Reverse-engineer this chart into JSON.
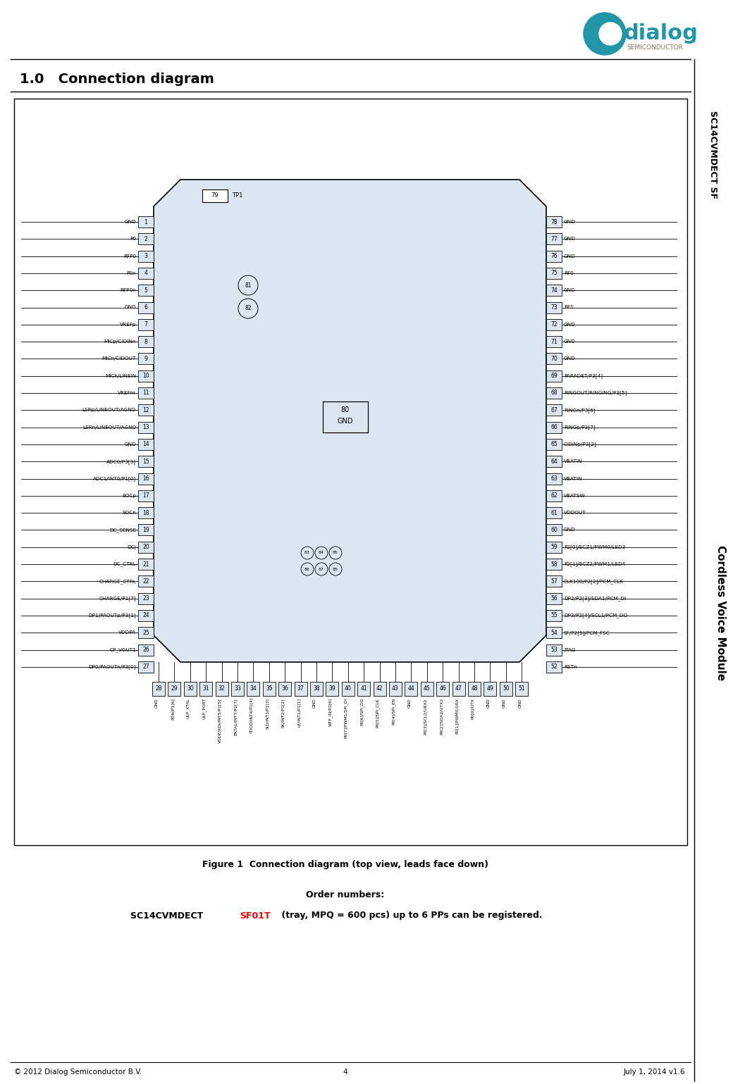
{
  "title": "1.0   Connection diagram",
  "figure_caption": "Figure 1  Connection diagram (top view, leads face down)",
  "order_text1": "Order numbers:",
  "footer_left": "© 2012 Dialog Semiconductor B.V.",
  "footer_center": "4",
  "footer_right": "July 1, 2014 v1.6",
  "right_sidebar1": "SC14CVMDECT SF",
  "right_sidebar2": "Cordless Voice Module",
  "ic_bg": "#dce6f1",
  "ic_border": "#000000",
  "left_pins": [
    {
      "num": 1,
      "name": "GND"
    },
    {
      "num": 2,
      "name": "P0"
    },
    {
      "num": 3,
      "name": "RFP0"
    },
    {
      "num": 4,
      "name": "P0n"
    },
    {
      "num": 5,
      "name": "RFP0n"
    },
    {
      "num": 6,
      "name": "GND"
    },
    {
      "num": 7,
      "name": "VREFp"
    },
    {
      "num": 8,
      "name": "MICp/CIDINn"
    },
    {
      "num": 9,
      "name": "MICn/CIDOUT"
    },
    {
      "num": 10,
      "name": "MICh/LINEIN"
    },
    {
      "num": 11,
      "name": "VREFm"
    },
    {
      "num": 12,
      "name": "LSRp/LINEOUT/AGND"
    },
    {
      "num": 13,
      "name": "LSRn/LINEOUT/AGND"
    },
    {
      "num": 14,
      "name": "GND"
    },
    {
      "num": 15,
      "name": "ADC0/P3[3]"
    },
    {
      "num": 16,
      "name": "ADC1/INT0/P1[0]"
    },
    {
      "num": 17,
      "name": "SOCp"
    },
    {
      "num": 18,
      "name": "SOCn"
    },
    {
      "num": 19,
      "name": "DC_SENSE"
    },
    {
      "num": 20,
      "name": "DCJ"
    },
    {
      "num": 21,
      "name": "DC_CTRL"
    },
    {
      "num": 22,
      "name": "CHARGE_CTRL"
    },
    {
      "num": 23,
      "name": "CHARGE/P1[7]"
    },
    {
      "num": 24,
      "name": "DP1/PAOUTp/P3[1]"
    },
    {
      "num": 25,
      "name": "VDDPA"
    },
    {
      "num": 26,
      "name": "CP_VOUT1"
    },
    {
      "num": 27,
      "name": "DP0/PAOUTn/P3[0]"
    }
  ],
  "right_pins": [
    {
      "num": 78,
      "name": "GND"
    },
    {
      "num": 77,
      "name": "GND"
    },
    {
      "num": 76,
      "name": "GND"
    },
    {
      "num": 75,
      "name": "RF0"
    },
    {
      "num": 74,
      "name": "GND"
    },
    {
      "num": 73,
      "name": "RF1"
    },
    {
      "num": 72,
      "name": "GND"
    },
    {
      "num": 71,
      "name": "GND"
    },
    {
      "num": 70,
      "name": "GND"
    },
    {
      "num": 69,
      "name": "PARADET/P3[4]"
    },
    {
      "num": 68,
      "name": "RINGOUT/RINGING/P3[5]"
    },
    {
      "num": 67,
      "name": "RINGn/P3[6]"
    },
    {
      "num": 66,
      "name": "RINGp/P3[7]"
    },
    {
      "num": 65,
      "name": "CIDINp/P3[2]"
    },
    {
      "num": 64,
      "name": "VBATIN"
    },
    {
      "num": 63,
      "name": "VBATIN"
    },
    {
      "num": 62,
      "name": "VBATSW"
    },
    {
      "num": 61,
      "name": "VDDOUT"
    },
    {
      "num": 60,
      "name": "GND"
    },
    {
      "num": 59,
      "name": "P2[0]/ECZ1/PWM0/LED3"
    },
    {
      "num": 58,
      "name": "P2[1]/ECZ2/PWM1/LED4"
    },
    {
      "num": 57,
      "name": "CLK100/P2[2]/PCM_CLK"
    },
    {
      "num": 56,
      "name": "DP2/P2[3]/SDA1/PCM_DI"
    },
    {
      "num": 55,
      "name": "DP3/P2[4]/SCL1/PCM_DO"
    },
    {
      "num": 54,
      "name": "SF/P2[5]/PCM_FSC"
    },
    {
      "num": 53,
      "name": "JTAG"
    },
    {
      "num": 52,
      "name": "RSTn"
    }
  ],
  "bottom_pins": [
    {
      "num": 28,
      "name": "GND"
    },
    {
      "num": 29,
      "name": "PON/P1[6]"
    },
    {
      "num": 30,
      "name": "ULP_XTAL"
    },
    {
      "num": 31,
      "name": "ULP_PORT"
    },
    {
      "num": 32,
      "name": "VDDE/RDI/INT5/P1[5]"
    },
    {
      "num": 33,
      "name": "BXTAL/INT7/P2[7]"
    },
    {
      "num": 34,
      "name": "TDOD/INT4/P1[4]"
    },
    {
      "num": 35,
      "name": "SIO/INT3/P1[3]"
    },
    {
      "num": 36,
      "name": "SK/INT2/P1[2]"
    },
    {
      "num": 37,
      "name": "LE/INT1/P1[1]"
    },
    {
      "num": 38,
      "name": "GND"
    },
    {
      "num": 39,
      "name": "WTF_IN/P2[6]"
    },
    {
      "num": 40,
      "name": "P0[7]/PWM1/SPI_DI"
    },
    {
      "num": 41,
      "name": "P0[6]/SPI_DO"
    },
    {
      "num": 42,
      "name": "P0[5]/SPI_CLK"
    },
    {
      "num": 43,
      "name": "P0[4]/SPI_EN"
    },
    {
      "num": 44,
      "name": "GND"
    },
    {
      "num": 45,
      "name": "P0[3]/SCL2/URX2"
    },
    {
      "num": 46,
      "name": "P0[2]/SDA2/UTX2"
    },
    {
      "num": 47,
      "name": "P0[1]/PWM0/URX"
    },
    {
      "num": 48,
      "name": "P0[0]/UTX"
    },
    {
      "num": 49,
      "name": "GND"
    },
    {
      "num": 50,
      "name": "GND"
    },
    {
      "num": 51,
      "name": "GND"
    }
  ]
}
